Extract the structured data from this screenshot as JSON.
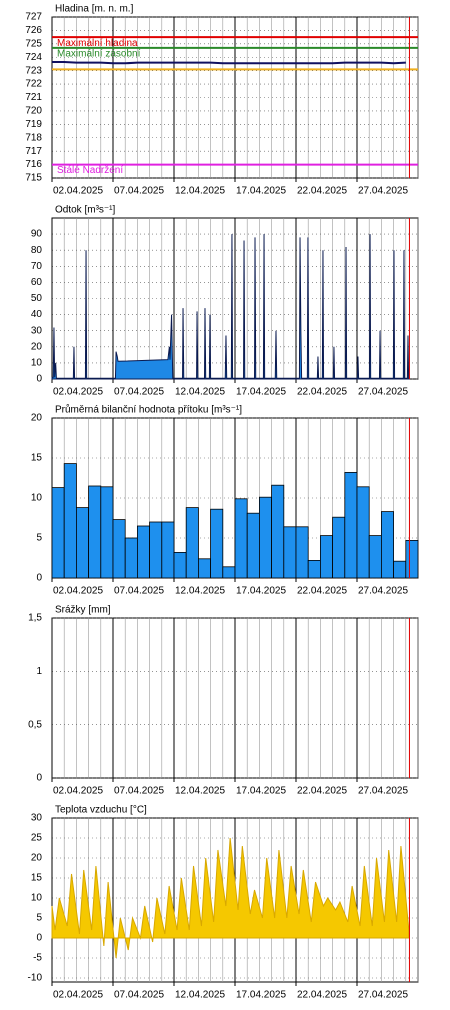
{
  "chart_data": [
    {
      "type": "line",
      "title": "Hladina [m. n. m.]",
      "xlim": [
        2,
        32
      ],
      "xticks": [
        {
          "value": 2,
          "label": "02.04.2025"
        },
        {
          "value": 7,
          "label": "07.04.2025"
        },
        {
          "value": 12,
          "label": "12.04.2025"
        },
        {
          "value": 17,
          "label": "17.04.2025"
        },
        {
          "value": 22,
          "label": "22.04.2025"
        },
        {
          "value": 27,
          "label": "27.04.2025"
        }
      ],
      "x_minor_step": 1,
      "ylim": [
        715,
        727
      ],
      "yticks": [
        715,
        716,
        717,
        718,
        719,
        720,
        721,
        722,
        723,
        724,
        725,
        726,
        727
      ],
      "grid": true,
      "marker_line": {
        "x": 31.3,
        "color": "#e00000"
      },
      "series": [
        {
          "name": "Maximální hladina",
          "color": "#e00000",
          "x": [
            2,
            32
          ],
          "values": [
            725.5,
            725.5
          ]
        },
        {
          "name": "Maximální zásobní",
          "color": "#2a8a2a",
          "x": [
            2,
            32
          ],
          "values": [
            724.7,
            724.7
          ]
        },
        {
          "color": "#f0b020",
          "x": [
            2,
            32
          ],
          "values": [
            723.1,
            723.1
          ]
        },
        {
          "color": "#101060",
          "x": [
            2,
            3,
            4,
            5,
            6,
            7,
            8,
            9,
            10,
            11,
            12,
            13,
            14,
            15,
            16,
            17,
            18,
            19,
            20,
            21,
            22,
            23,
            24,
            25,
            26,
            27,
            28,
            29,
            30,
            31
          ],
          "values": [
            723.65,
            723.65,
            723.6,
            723.6,
            723.6,
            723.55,
            723.55,
            723.6,
            723.6,
            723.6,
            723.6,
            723.6,
            723.6,
            723.6,
            723.55,
            723.55,
            723.55,
            723.55,
            723.55,
            723.55,
            723.55,
            723.55,
            723.55,
            723.55,
            723.6,
            723.6,
            723.6,
            723.6,
            723.55,
            723.6
          ]
        },
        {
          "name": "Stálé Nadržení",
          "color": "#e020e0",
          "x": [
            2,
            32
          ],
          "values": [
            716.0,
            716.0
          ]
        }
      ]
    },
    {
      "type": "area",
      "title": "Odtok [m³s⁻¹]",
      "xlim": [
        2,
        32
      ],
      "xticks": [
        {
          "value": 2,
          "label": "02.04.2025"
        },
        {
          "value": 7,
          "label": "07.04.2025"
        },
        {
          "value": 12,
          "label": "12.04.2025"
        },
        {
          "value": 17,
          "label": "17.04.2025"
        },
        {
          "value": 22,
          "label": "22.04.2025"
        },
        {
          "value": 27,
          "label": "27.04.2025"
        }
      ],
      "x_minor_step": 1,
      "ylim": [
        0,
        100
      ],
      "yticks": [
        0,
        10,
        20,
        30,
        40,
        50,
        60,
        70,
        80,
        90
      ],
      "grid": true,
      "marker_line": {
        "x": 31.3,
        "color": "#e00000"
      },
      "color": "#1e88e5",
      "line_color": "#0a1a50",
      "x": [
        2,
        2.1,
        2.16,
        2.22,
        2.3,
        2.36,
        3.75,
        3.8,
        3.85,
        4.74,
        4.79,
        4.84,
        7.2,
        7.25,
        7.35,
        7.41,
        11.5,
        11.62,
        11.67,
        11.8,
        11.9,
        12.7,
        12.74,
        12.8,
        13.85,
        13.89,
        13.95,
        14.5,
        14.54,
        14.6,
        14.9,
        14.95,
        15.0,
        16.2,
        16.26,
        16.32,
        16.7,
        16.75,
        16.8,
        17.7,
        17.74,
        17.8,
        18.6,
        18.64,
        18.7,
        19.33,
        19.38,
        19.43,
        20.3,
        20.36,
        20.42,
        22.28,
        22.33,
        22.4,
        22.46,
        22.93,
        22.98,
        23.04,
        23.75,
        23.8,
        23.85,
        24.16,
        24.21,
        24.26,
        25.06,
        25.11,
        25.16,
        26.05,
        26.1,
        26.15,
        27.03,
        27.08,
        27.13,
        28.02,
        28.07,
        28.12,
        28.84,
        28.89,
        28.94,
        29.98,
        30.03,
        30.08,
        30.8,
        30.85,
        30.9,
        31.13,
        31.18,
        31.23,
        31.3
      ],
      "values": [
        1,
        1,
        32,
        1,
        10,
        0.5,
        0.5,
        20,
        0.5,
        0.5,
        80,
        0.5,
        0.5,
        17,
        14,
        11,
        12,
        20,
        12,
        40,
        0.5,
        0.5,
        44,
        0.5,
        0.5,
        42,
        0.5,
        0.5,
        44,
        0.5,
        0.5,
        40,
        0.5,
        0.5,
        27,
        0.5,
        0.5,
        90,
        0.5,
        0.5,
        86,
        0.5,
        0.5,
        88,
        0.5,
        0.5,
        90,
        0.5,
        0.5,
        30,
        0.5,
        0.5,
        88,
        30,
        0.5,
        0.5,
        88,
        0.5,
        0.5,
        14,
        0.5,
        0.5,
        80,
        0.5,
        0.5,
        20,
        0.5,
        0.5,
        82,
        0.5,
        0.5,
        14,
        0.5,
        0.5,
        90,
        0.5,
        0.5,
        30,
        0.5,
        0.5,
        80,
        0.5,
        0.5,
        80,
        0.5,
        0.5,
        27,
        0.5,
        0.5
      ]
    },
    {
      "type": "histogram",
      "title": "Průměrná bilanční hodnota přítoku   [m³s⁻¹]",
      "xlim": [
        2,
        32
      ],
      "xticks": [
        {
          "value": 2,
          "label": "02.04.2025"
        },
        {
          "value": 7,
          "label": "07.04.2025"
        },
        {
          "value": 12,
          "label": "12.04.2025"
        },
        {
          "value": 17,
          "label": "17.04.2025"
        },
        {
          "value": 22,
          "label": "22.04.2025"
        },
        {
          "value": 27,
          "label": "27.04.2025"
        }
      ],
      "x_minor_step": 1,
      "ylim": [
        0,
        20
      ],
      "yticks": [
        0,
        5,
        10,
        15,
        20
      ],
      "grid": true,
      "marker_line": {
        "x": 31.3,
        "color": "#e00000"
      },
      "color": "#1e90ee",
      "line_color": "#000000",
      "bins": [
        2,
        3,
        4,
        5,
        6,
        7,
        8,
        9,
        10,
        11,
        12,
        13,
        14,
        15,
        16,
        17,
        18,
        19,
        20,
        21,
        22,
        23,
        24,
        25,
        26,
        27,
        28,
        29,
        30,
        31,
        32
      ],
      "values": [
        11.3,
        14.3,
        8.8,
        11.5,
        11.4,
        7.3,
        5.0,
        6.5,
        7.0,
        7.0,
        3.2,
        8.8,
        2.4,
        8.6,
        1.4,
        9.9,
        8.1,
        10.1,
        11.6,
        6.4,
        6.4,
        2.2,
        5.3,
        7.6,
        13.2,
        11.4,
        5.3,
        8.3,
        2.1,
        4.7
      ]
    },
    {
      "type": "bar",
      "title": "Srážky [mm]",
      "xlim": [
        2,
        32
      ],
      "xticks": [
        {
          "value": 2,
          "label": "02.04.2025"
        },
        {
          "value": 7,
          "label": "07.04.2025"
        },
        {
          "value": 12,
          "label": "12.04.2025"
        },
        {
          "value": 17,
          "label": "17.04.2025"
        },
        {
          "value": 22,
          "label": "22.04.2025"
        },
        {
          "value": 27,
          "label": "27.04.2025"
        }
      ],
      "x_minor_step": 1,
      "ylim": [
        0,
        1.5
      ],
      "yticks": [
        0,
        {
          "value": 0.5,
          "label": "0,5"
        },
        1,
        {
          "value": 1.5,
          "label": "1,5"
        }
      ],
      "grid": true,
      "marker_line": {
        "x": 31.3,
        "color": "#e00000"
      },
      "values": []
    },
    {
      "type": "area",
      "title": "Teplota vzduchu [°C]",
      "xlim": [
        2,
        32
      ],
      "xticks": [
        {
          "value": 2,
          "label": "02.04.2025"
        },
        {
          "value": 7,
          "label": "07.04.2025"
        },
        {
          "value": 12,
          "label": "12.04.2025"
        },
        {
          "value": 17,
          "label": "17.04.2025"
        },
        {
          "value": 22,
          "label": "22.04.2025"
        },
        {
          "value": 27,
          "label": "27.04.2025"
        }
      ],
      "x_minor_step": 1,
      "ylim": [
        -11,
        30
      ],
      "yticks": [
        -10,
        -5,
        0,
        5,
        10,
        15,
        20,
        25,
        30
      ],
      "grid": true,
      "marker_line": {
        "x": 31.3,
        "color": "#e00000"
      },
      "color": "#f5c800",
      "line_color": "#d8a800",
      "x": [
        2,
        2.25,
        2.6,
        3.25,
        3.6,
        4.25,
        4.6,
        5.25,
        5.6,
        6.25,
        6.6,
        7.25,
        7.6,
        8.25,
        8.6,
        9.25,
        9.6,
        10.25,
        10.6,
        11.25,
        11.6,
        12.25,
        12.6,
        13.25,
        13.6,
        14.25,
        14.6,
        15.25,
        15.6,
        16.25,
        16.6,
        17.25,
        17.6,
        18.25,
        18.6,
        19.25,
        19.6,
        20.25,
        20.6,
        21.25,
        21.6,
        22.25,
        22.6,
        23.25,
        23.6,
        24.25,
        24.6,
        25.25,
        25.6,
        26.25,
        26.6,
        27.25,
        27.6,
        28.25,
        28.6,
        29.25,
        29.6,
        30.25,
        30.6,
        31.25
      ],
      "values": [
        8,
        2,
        10,
        3,
        16,
        1,
        17,
        2,
        18,
        -2,
        14,
        -5,
        5,
        -3,
        5,
        0,
        8,
        -1,
        10,
        1,
        13,
        2,
        15,
        2,
        18,
        3,
        20,
        4,
        22,
        8,
        25,
        7,
        23,
        6,
        12,
        5,
        20,
        5,
        22,
        5,
        18,
        6,
        17,
        4,
        14,
        8,
        10,
        7,
        9,
        4,
        13,
        3,
        18,
        3,
        20,
        4,
        22,
        4,
        23,
        2
      ]
    }
  ]
}
